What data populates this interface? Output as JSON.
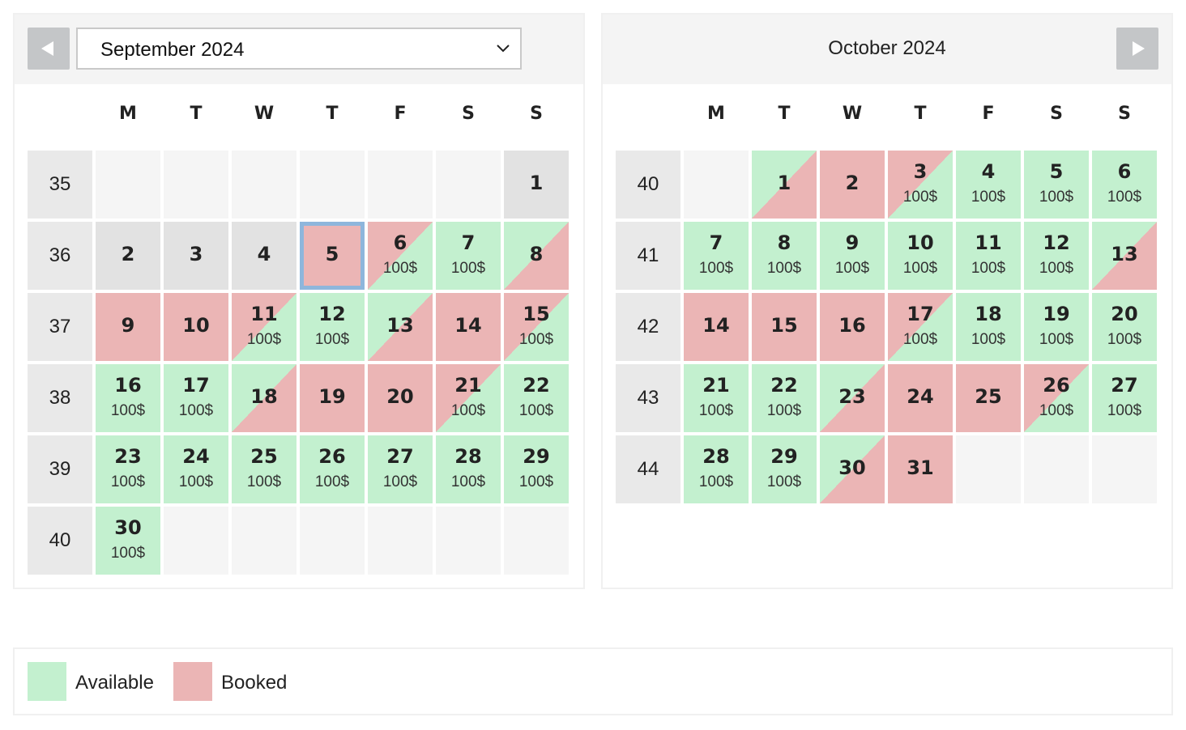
{
  "left_month": {
    "select_value": "September 2024",
    "prev_icon": "triangle-left-icon",
    "dropdown_icon": "chevron-down-icon",
    "weekdays": [
      "M",
      "T",
      "W",
      "T",
      "F",
      "S",
      "S"
    ],
    "weeks": [
      {
        "week": "35",
        "days": [
          {
            "day": "",
            "state": "empty"
          },
          {
            "day": "",
            "state": "empty"
          },
          {
            "day": "",
            "state": "empty"
          },
          {
            "day": "",
            "state": "empty"
          },
          {
            "day": "",
            "state": "empty"
          },
          {
            "day": "",
            "state": "empty"
          },
          {
            "day": "1",
            "state": "past"
          }
        ]
      },
      {
        "week": "36",
        "days": [
          {
            "day": "2",
            "state": "past"
          },
          {
            "day": "3",
            "state": "past"
          },
          {
            "day": "4",
            "state": "past"
          },
          {
            "day": "5",
            "state": "booked",
            "today": true
          },
          {
            "day": "6",
            "state": "checkout",
            "price": "100$"
          },
          {
            "day": "7",
            "state": "available",
            "price": "100$"
          },
          {
            "day": "8",
            "state": "checkin"
          }
        ]
      },
      {
        "week": "37",
        "days": [
          {
            "day": "9",
            "state": "booked"
          },
          {
            "day": "10",
            "state": "booked"
          },
          {
            "day": "11",
            "state": "checkout",
            "price": "100$"
          },
          {
            "day": "12",
            "state": "available",
            "price": "100$"
          },
          {
            "day": "13",
            "state": "checkin"
          },
          {
            "day": "14",
            "state": "booked"
          },
          {
            "day": "15",
            "state": "checkout",
            "price": "100$"
          }
        ]
      },
      {
        "week": "38",
        "days": [
          {
            "day": "16",
            "state": "available",
            "price": "100$"
          },
          {
            "day": "17",
            "state": "available",
            "price": "100$"
          },
          {
            "day": "18",
            "state": "checkin"
          },
          {
            "day": "19",
            "state": "booked"
          },
          {
            "day": "20",
            "state": "booked"
          },
          {
            "day": "21",
            "state": "checkout",
            "price": "100$"
          },
          {
            "day": "22",
            "state": "available",
            "price": "100$"
          }
        ]
      },
      {
        "week": "39",
        "days": [
          {
            "day": "23",
            "state": "available",
            "price": "100$"
          },
          {
            "day": "24",
            "state": "available",
            "price": "100$"
          },
          {
            "day": "25",
            "state": "available",
            "price": "100$"
          },
          {
            "day": "26",
            "state": "available",
            "price": "100$"
          },
          {
            "day": "27",
            "state": "available",
            "price": "100$"
          },
          {
            "day": "28",
            "state": "available",
            "price": "100$"
          },
          {
            "day": "29",
            "state": "available",
            "price": "100$"
          }
        ]
      },
      {
        "week": "40",
        "days": [
          {
            "day": "30",
            "state": "available",
            "price": "100$"
          },
          {
            "day": "",
            "state": "empty"
          },
          {
            "day": "",
            "state": "empty"
          },
          {
            "day": "",
            "state": "empty"
          },
          {
            "day": "",
            "state": "empty"
          },
          {
            "day": "",
            "state": "empty"
          },
          {
            "day": "",
            "state": "empty"
          }
        ]
      }
    ]
  },
  "right_month": {
    "title": "October 2024",
    "next_icon": "triangle-right-icon",
    "weekdays": [
      "M",
      "T",
      "W",
      "T",
      "F",
      "S",
      "S"
    ],
    "weeks": [
      {
        "week": "40",
        "days": [
          {
            "day": "",
            "state": "empty"
          },
          {
            "day": "1",
            "state": "checkin"
          },
          {
            "day": "2",
            "state": "booked"
          },
          {
            "day": "3",
            "state": "checkout",
            "price": "100$"
          },
          {
            "day": "4",
            "state": "available",
            "price": "100$"
          },
          {
            "day": "5",
            "state": "available",
            "price": "100$"
          },
          {
            "day": "6",
            "state": "available",
            "price": "100$"
          }
        ]
      },
      {
        "week": "41",
        "days": [
          {
            "day": "7",
            "state": "available",
            "price": "100$"
          },
          {
            "day": "8",
            "state": "available",
            "price": "100$"
          },
          {
            "day": "9",
            "state": "available",
            "price": "100$"
          },
          {
            "day": "10",
            "state": "available",
            "price": "100$"
          },
          {
            "day": "11",
            "state": "available",
            "price": "100$"
          },
          {
            "day": "12",
            "state": "available",
            "price": "100$"
          },
          {
            "day": "13",
            "state": "checkin"
          }
        ]
      },
      {
        "week": "42",
        "days": [
          {
            "day": "14",
            "state": "booked"
          },
          {
            "day": "15",
            "state": "booked"
          },
          {
            "day": "16",
            "state": "booked"
          },
          {
            "day": "17",
            "state": "checkout",
            "price": "100$"
          },
          {
            "day": "18",
            "state": "available",
            "price": "100$"
          },
          {
            "day": "19",
            "state": "available",
            "price": "100$"
          },
          {
            "day": "20",
            "state": "available",
            "price": "100$"
          }
        ]
      },
      {
        "week": "43",
        "days": [
          {
            "day": "21",
            "state": "available",
            "price": "100$"
          },
          {
            "day": "22",
            "state": "available",
            "price": "100$"
          },
          {
            "day": "23",
            "state": "checkin"
          },
          {
            "day": "24",
            "state": "booked"
          },
          {
            "day": "25",
            "state": "booked"
          },
          {
            "day": "26",
            "state": "checkout",
            "price": "100$"
          },
          {
            "day": "27",
            "state": "available",
            "price": "100$"
          }
        ]
      },
      {
        "week": "44",
        "days": [
          {
            "day": "28",
            "state": "available",
            "price": "100$"
          },
          {
            "day": "29",
            "state": "available",
            "price": "100$"
          },
          {
            "day": "30",
            "state": "checkin"
          },
          {
            "day": "31",
            "state": "booked"
          },
          {
            "day": "",
            "state": "empty"
          },
          {
            "day": "",
            "state": "empty"
          },
          {
            "day": "",
            "state": "empty"
          }
        ]
      }
    ]
  },
  "legend": {
    "available_label": "Available",
    "booked_label": "Booked",
    "available_color": "#c3f0cf",
    "booked_color": "#ebb5b5"
  },
  "colors": {
    "today_border": "#8eb6dc",
    "past_day": "#e2e2e2",
    "week_number_bg": "#e9e9e9",
    "nav_button": "#c4c6c8"
  }
}
